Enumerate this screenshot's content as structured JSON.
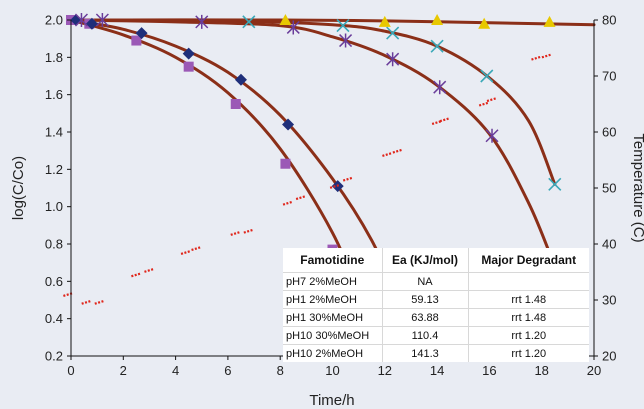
{
  "chart_data": {
    "type": "scatter",
    "x": {
      "label": "Time/h",
      "range": [
        0,
        20
      ],
      "ticks": [
        0,
        2,
        4,
        6,
        8,
        10,
        12,
        14,
        16,
        18,
        20
      ]
    },
    "y_left": {
      "label": "log(C/Co)",
      "range": [
        0.2,
        2.0
      ],
      "ticks": [
        "0.2",
        "0.4",
        "0.6",
        "0.8",
        "1.0",
        "1.2",
        "1.4",
        "1.6",
        "1.8",
        "2.0"
      ]
    },
    "y_right": {
      "label": "Temperature (C)",
      "range": [
        20,
        80
      ],
      "ticks": [
        20,
        30,
        40,
        50,
        60,
        70,
        80
      ]
    },
    "grid": false,
    "background_color": "#e9ecf3",
    "fit_color": "#8b2f18",
    "series": [
      {
        "marker": "square",
        "color": "#9b59b6",
        "axis": "left",
        "points": [
          [
            0,
            2.0
          ],
          [
            0.7,
            1.98
          ],
          [
            2.5,
            1.89
          ],
          [
            4.5,
            1.75
          ],
          [
            6.3,
            1.55
          ],
          [
            8.2,
            1.23
          ],
          [
            10.0,
            0.77
          ]
        ]
      },
      {
        "marker": "diamond",
        "color": "#1f2f7a",
        "axis": "left",
        "points": [
          [
            0.2,
            2.0
          ],
          [
            0.8,
            1.98
          ],
          [
            2.7,
            1.93
          ],
          [
            4.5,
            1.82
          ],
          [
            6.5,
            1.68
          ],
          [
            8.3,
            1.44
          ],
          [
            10.2,
            1.11
          ]
        ]
      },
      {
        "marker": "star",
        "color": "#6a3d9a",
        "axis": "left",
        "points": [
          [
            0.4,
            2.0
          ],
          [
            1.2,
            2.0
          ],
          [
            5.0,
            1.99
          ],
          [
            8.5,
            1.96
          ],
          [
            10.5,
            1.89
          ],
          [
            12.3,
            1.79
          ],
          [
            14.1,
            1.64
          ],
          [
            16.1,
            1.38
          ]
        ]
      },
      {
        "marker": "x",
        "color": "#3aa8b8",
        "axis": "left",
        "points": [
          [
            6.8,
            1.99
          ],
          [
            10.4,
            1.97
          ],
          [
            12.3,
            1.93
          ],
          [
            14.0,
            1.86
          ],
          [
            15.9,
            1.7
          ],
          [
            18.5,
            1.12
          ]
        ]
      },
      {
        "marker": "triangle",
        "color": "#e8c800",
        "axis": "left",
        "points": [
          [
            8.2,
            2.0
          ],
          [
            12.0,
            1.99
          ],
          [
            14.0,
            2.0
          ],
          [
            15.8,
            1.98
          ],
          [
            18.3,
            1.99
          ]
        ]
      },
      {
        "marker": "dash",
        "color": "#e0261b",
        "axis": "right",
        "points": [
          [
            -0.1,
            31
          ],
          [
            0.6,
            29.6
          ],
          [
            1.1,
            29.6
          ],
          [
            2.5,
            34.5
          ],
          [
            3.0,
            35.3
          ],
          [
            4.4,
            38.5
          ],
          [
            4.8,
            39.2
          ],
          [
            6.3,
            41.9
          ],
          [
            6.8,
            42.3
          ],
          [
            8.3,
            47.3
          ],
          [
            8.8,
            48.3
          ],
          [
            10.1,
            50.3
          ],
          [
            10.6,
            51.6
          ],
          [
            12.1,
            56.0
          ],
          [
            12.5,
            56.6
          ],
          [
            14.0,
            61.7
          ],
          [
            14.3,
            62.2
          ],
          [
            15.8,
            65.0
          ],
          [
            16.1,
            65.8
          ],
          [
            17.8,
            73.2
          ],
          [
            18.2,
            73.6
          ]
        ]
      }
    ],
    "fits": [
      {
        "axis": "left",
        "points": [
          [
            0,
            2.0
          ],
          [
            2,
            1.92
          ],
          [
            4,
            1.8
          ],
          [
            6,
            1.61
          ],
          [
            8,
            1.31
          ],
          [
            10,
            0.86
          ],
          [
            11.2,
            0.46
          ],
          [
            11.6,
            0.3
          ]
        ]
      },
      {
        "axis": "left",
        "points": [
          [
            0,
            2.0
          ],
          [
            2,
            1.95
          ],
          [
            4,
            1.86
          ],
          [
            6,
            1.72
          ],
          [
            8,
            1.49
          ],
          [
            10,
            1.15
          ],
          [
            11.5,
            0.82
          ],
          [
            12.8,
            0.42
          ],
          [
            13.2,
            0.28
          ]
        ]
      },
      {
        "axis": "left",
        "points": [
          [
            0,
            2.0
          ],
          [
            4,
            1.99
          ],
          [
            8,
            1.97
          ],
          [
            10,
            1.91
          ],
          [
            12,
            1.81
          ],
          [
            14,
            1.65
          ],
          [
            16,
            1.39
          ],
          [
            17.5,
            1.02
          ],
          [
            18.5,
            0.68
          ],
          [
            19,
            0.5
          ]
        ]
      },
      {
        "axis": "left",
        "points": [
          [
            0,
            2.0
          ],
          [
            6,
            1.995
          ],
          [
            10,
            1.975
          ],
          [
            12,
            1.94
          ],
          [
            14,
            1.86
          ],
          [
            16,
            1.69
          ],
          [
            17.5,
            1.46
          ],
          [
            18.5,
            1.12
          ]
        ]
      },
      {
        "axis": "left",
        "points": [
          [
            0,
            2.0
          ],
          [
            8,
            2.0
          ],
          [
            12,
            1.995
          ],
          [
            16,
            1.985
          ],
          [
            20,
            1.975
          ]
        ]
      }
    ],
    "inset_table": {
      "headers": [
        "Famotidine",
        "Ea (KJ/mol)",
        "Major Degradant"
      ],
      "rows": [
        [
          "pH7 2%MeOH",
          "NA",
          ""
        ],
        [
          "pH1 2%MeOH",
          "59.13",
          "rrt 1.48"
        ],
        [
          "pH1 30%MeOH",
          "63.88",
          "rrt 1.48"
        ],
        [
          "pH10 30%MeOH",
          "110.4",
          "rrt 1.20"
        ],
        [
          "pH10 2%MeOH",
          "141.3",
          "rrt 1.20"
        ]
      ]
    }
  }
}
